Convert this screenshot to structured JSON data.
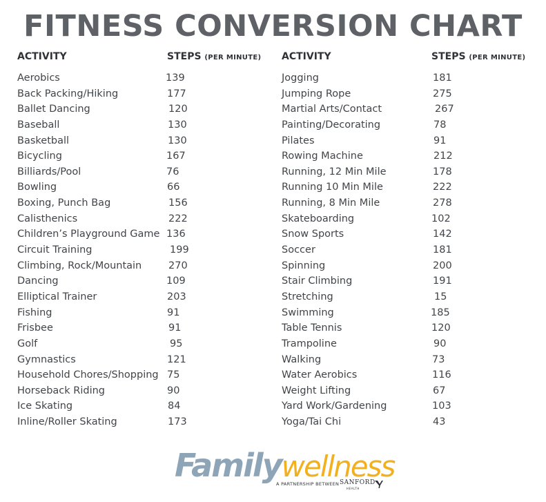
{
  "title": "FITNESS CONVERSION CHART",
  "headers": {
    "activity": "ACTIVITY",
    "steps": "STEPS",
    "steps_unit": "(PER MINUTE)"
  },
  "left": [
    {
      "activity": "Aerobics",
      "steps": "139"
    },
    {
      "activity": "Back Packing/Hiking",
      "steps": "177"
    },
    {
      "activity": "Ballet Dancing",
      "steps": "120"
    },
    {
      "activity": "Baseball",
      "steps": "130"
    },
    {
      "activity": "Basketball",
      "steps": "130"
    },
    {
      "activity": "Bicycling",
      "steps": "167"
    },
    {
      "activity": "Billiards/Pool",
      "steps": "76"
    },
    {
      "activity": "Bowling",
      "steps": "66"
    },
    {
      "activity": "Boxing, Punch Bag",
      "steps": "156"
    },
    {
      "activity": "Calisthenics",
      "steps": "222"
    },
    {
      "activity": "Children’s Playground Game",
      "steps": "136"
    },
    {
      "activity": "Circuit Training",
      "steps": "199"
    },
    {
      "activity": "Climbing, Rock/Mountain",
      "steps": "270"
    },
    {
      "activity": "Dancing",
      "steps": "109"
    },
    {
      "activity": "Elliptical Trainer",
      "steps": "203"
    },
    {
      "activity": "Fishing",
      "steps": "91"
    },
    {
      "activity": "Frisbee",
      "steps": "91"
    },
    {
      "activity": "Golf",
      "steps": "95"
    },
    {
      "activity": "Gymnastics",
      "steps": "121"
    },
    {
      "activity": "Household Chores/Shopping",
      "steps": "75"
    },
    {
      "activity": "Horseback Riding",
      "steps": "90"
    },
    {
      "activity": "Ice Skating",
      "steps": "84"
    },
    {
      "activity": "Inline/Roller Skating",
      "steps": "173"
    }
  ],
  "right": [
    {
      "activity": "Jogging",
      "steps": "181"
    },
    {
      "activity": "Jumping Rope",
      "steps": "275"
    },
    {
      "activity": "Martial Arts/Contact",
      "steps": "267"
    },
    {
      "activity": "Painting/Decorating",
      "steps": "78"
    },
    {
      "activity": "Pilates",
      "steps": "91"
    },
    {
      "activity": "Rowing Machine",
      "steps": "212"
    },
    {
      "activity": "Running, 12 Min Mile",
      "steps": "178"
    },
    {
      "activity": "Running 10 Min Mile",
      "steps": "222"
    },
    {
      "activity": "Running, 8 Min Mile",
      "steps": "278"
    },
    {
      "activity": "Skateboarding",
      "steps": "102"
    },
    {
      "activity": "Snow Sports",
      "steps": "142"
    },
    {
      "activity": "Soccer",
      "steps": "181"
    },
    {
      "activity": "Spinning",
      "steps": "200"
    },
    {
      "activity": "Stair Climbing",
      "steps": "191"
    },
    {
      "activity": "Stretching",
      "steps": "15"
    },
    {
      "activity": "Swimming",
      "steps": "185"
    },
    {
      "activity": "Table Tennis",
      "steps": "120"
    },
    {
      "activity": "Trampoline",
      "steps": "90"
    },
    {
      "activity": "Walking",
      "steps": "73"
    },
    {
      "activity": "Water Aerobics",
      "steps": "116"
    },
    {
      "activity": "Weight Lifting",
      "steps": "67"
    },
    {
      "activity": "Yard Work/Gardening",
      "steps": "103"
    },
    {
      "activity": "Yoga/Tai Chi",
      "steps": "43"
    }
  ],
  "footer": {
    "logo_family": "Family",
    "logo_wellness": "wellness",
    "partnership": "A PARTNERSHIP BETWEEN",
    "sanford": "SANFORD",
    "sanford_sub": "HEALTH",
    "ymca_icon": "ymca-y-logo-icon"
  },
  "colors": {
    "title": "#5e6166",
    "text": "#414448",
    "logo_family": "#8ea4b7",
    "logo_wellness": "#f2b01e"
  }
}
